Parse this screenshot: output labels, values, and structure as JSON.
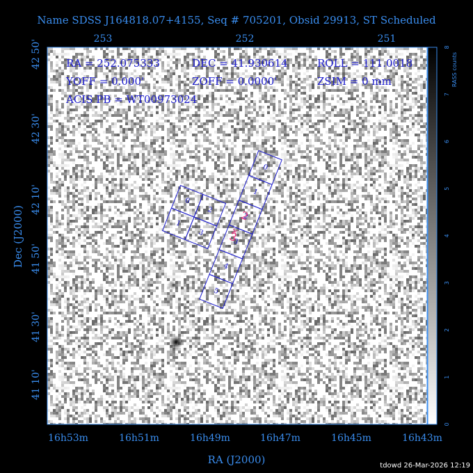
{
  "title": "Name SDSS J164818.07+4155, Seq # 705201, Obsid 29913, ST Scheduled",
  "top_axis": {
    "ticks": [
      "253",
      "252",
      "251"
    ]
  },
  "bottom_axis": {
    "label": "RA (J2000)",
    "ticks": [
      "16h53m",
      "16h51m",
      "16h49m",
      "16h47m",
      "16h45m",
      "16h43m"
    ]
  },
  "left_axis": {
    "label": "Dec (J2000)",
    "ticks": [
      "42 50'",
      "42 30'",
      "42 10'",
      "41 50'",
      "41 30'",
      "41 10'"
    ]
  },
  "colorbar": {
    "label": "RASS counts",
    "ticks": [
      "0",
      "1",
      "2",
      "3",
      "4",
      "5",
      "6",
      "7",
      "8"
    ]
  },
  "info": [
    "RA = 252.075333",
    "DEC = 41.930614",
    "ROLL = 111.0018",
    "YOFF =   0.000'",
    "ZOFF =  0.0000'",
    "ZSIM = 0 mm",
    "ACIS PB = WT00973024"
  ],
  "acis_i_chips": [
    "0",
    "2",
    "1",
    "3"
  ],
  "acis_s_chips": [
    "0",
    "1",
    "2",
    "3",
    "4",
    "5"
  ],
  "highlight_chips": [
    "2",
    "3"
  ],
  "footer": "tdowd 26-Mar-2026 12:19"
}
